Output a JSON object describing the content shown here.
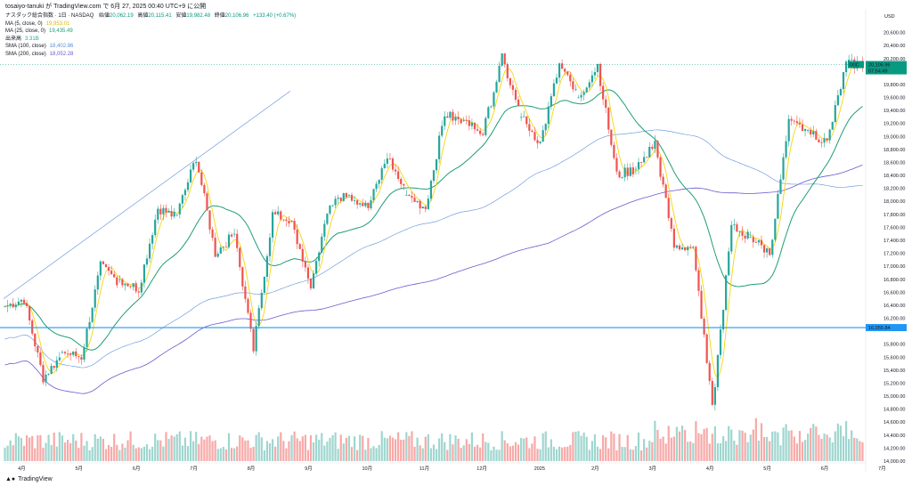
{
  "header": {
    "caption": "tosaiyo-tanuki が TradingView.com で 6月 27, 2025 00:40 UTC+9 に公開"
  },
  "legend": {
    "main": {
      "label": "ナスダック総合指数 · 1日 · NASDAQ",
      "open_label": "始値",
      "open": "20,062.19",
      "high_label": "高値",
      "high": "20,115.41",
      "low_label": "安値",
      "low": "19,982.48",
      "close_label": "終値",
      "close": "20,106.96",
      "change": "+133.40 (+0.67%)"
    },
    "indicators": [
      {
        "label": "MA (5, close, 0)",
        "value": "19,953.01",
        "color": "#f6d50a"
      },
      {
        "label": "MA (25, close, 0)",
        "value": "19,435.49",
        "color": "#1f9e74"
      },
      {
        "label": "出来高",
        "value": "3.31B",
        "color": "#26a69a"
      },
      {
        "label": "SMA (100, close)",
        "value": "18,402.86",
        "color": "#5b8fd9"
      },
      {
        "label": "SMA (200, close)",
        "value": "18,052.28",
        "color": "#6a5acd"
      }
    ]
  },
  "price_axis": {
    "currency": "USD",
    "ticks": [
      "20,600.00",
      "20,400.00",
      "20,200.00",
      "19,800.00",
      "19,600.00",
      "19,400.00",
      "19,200.00",
      "19,000.00",
      "18,800.00",
      "18,600.00",
      "18,400.00",
      "18,200.00",
      "18,000.00",
      "17,800.00",
      "17,600.00",
      "17,400.00",
      "17,200.00",
      "17,000.00",
      "16,800.00",
      "16,600.00",
      "16,400.00",
      "16,200.00",
      "15,800.00",
      "15,600.00",
      "15,400.00",
      "15,200.00",
      "15,000.00",
      "14,800.00",
      "14,600.00",
      "14,400.00",
      "14,200.00",
      "14,000.00"
    ],
    "last_price_label": "20,106.96",
    "last_price_tag": "IXIC",
    "countdown": "07:54:49",
    "hline_label": "16,055.84"
  },
  "time_axis": {
    "ticks": [
      "4月",
      "5月",
      "6月",
      "7月",
      "8月",
      "9月",
      "10月",
      "11月",
      "12月",
      "2025",
      "2月",
      "3月",
      "4月",
      "5月",
      "6月",
      "7月"
    ]
  },
  "footer": {
    "brand": "TradingView"
  },
  "colors": {
    "up": "#26a69a",
    "down": "#ef5350",
    "vol_up": "#9fd6cf",
    "vol_down": "#f7a9a7",
    "hline": "#2196f3",
    "last": "#089981",
    "ma5": "#f6d50a",
    "ma25": "#1f9e74",
    "sma100": "#5b8fd9",
    "sma200": "#6a5acd",
    "trend": "#5b8fd9"
  },
  "chart_data": {
    "type": "candlestick",
    "title": "ナスダック総合指数 · 1日 · NASDAQ",
    "period": "2024-04 to 2025-06 (daily, approximate, read from chart)",
    "y_range": [
      14000,
      20800
    ],
    "horizontal_line": 16055.84,
    "trend_line": {
      "from": {
        "month": "2024-04",
        "value": 16500
      },
      "to": {
        "month": "2024-09",
        "value": 19700
      }
    },
    "monthly_ohlc": [
      {
        "month": "2024-04",
        "open": 16380,
        "high": 16500,
        "low": 15280,
        "close": 15650
      },
      {
        "month": "2024-05",
        "open": 15680,
        "high": 17000,
        "low": 15600,
        "close": 16750
      },
      {
        "month": "2024-06",
        "open": 16800,
        "high": 17900,
        "low": 16650,
        "close": 17750
      },
      {
        "month": "2024-07",
        "open": 17800,
        "high": 18680,
        "low": 17200,
        "close": 17500
      },
      {
        "month": "2024-08",
        "open": 17500,
        "high": 17800,
        "low": 15710,
        "close": 17700
      },
      {
        "month": "2024-09",
        "open": 17700,
        "high": 18000,
        "low": 16700,
        "close": 18150
      },
      {
        "month": "2024-10",
        "open": 18100,
        "high": 18700,
        "low": 17900,
        "close": 18100
      },
      {
        "month": "2024-11",
        "open": 18100,
        "high": 19350,
        "low": 17900,
        "close": 19200
      },
      {
        "month": "2024-12",
        "open": 19250,
        "high": 20200,
        "low": 19050,
        "close": 19300
      },
      {
        "month": "2025-01",
        "open": 19300,
        "high": 20100,
        "low": 18900,
        "close": 19600
      },
      {
        "month": "2025-02",
        "open": 19600,
        "high": 20100,
        "low": 18400,
        "close": 18500
      },
      {
        "month": "2025-03",
        "open": 18500,
        "high": 18900,
        "low": 17300,
        "close": 17300
      },
      {
        "month": "2025-04",
        "open": 17300,
        "high": 17600,
        "low": 14800,
        "close": 17450
      },
      {
        "month": "2025-05",
        "open": 17450,
        "high": 19200,
        "low": 17200,
        "close": 19100
      },
      {
        "month": "2025-06",
        "open": 19100,
        "high": 20115,
        "low": 18900,
        "close": 20107
      }
    ],
    "series": [
      {
        "name": "MA (5, close, 0)",
        "last": 19953.01
      },
      {
        "name": "MA (25, close, 0)",
        "last": 19435.49
      },
      {
        "name": "SMA (100, close)",
        "last": 18402.86
      },
      {
        "name": "SMA (200, close)",
        "last": 18052.28
      },
      {
        "name": "出来高",
        "last": "3.31B"
      }
    ]
  }
}
